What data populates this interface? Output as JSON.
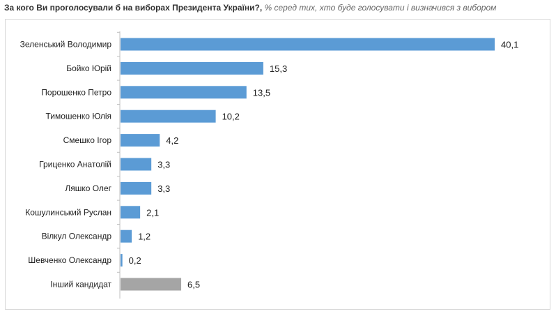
{
  "header": {
    "title": "За кого Ви проголосували б на виборах Президента України?,",
    "note": " % серед тих, хто буде голосувати і визначився з вибором"
  },
  "chart_data": {
    "type": "bar",
    "orientation": "horizontal",
    "categories": [
      "Зеленський Володимир",
      "Бойко Юрій",
      "Порошенко Петро",
      "Тимошенко Юлія",
      "Смешко Ігор",
      "Гриценко Анатолій",
      "Ляшко Олег",
      "Кошулинський Руслан",
      "Вілкул Олександр",
      "Шевченко Олександр",
      "Інший кандидат"
    ],
    "values": [
      40.1,
      15.3,
      13.5,
      10.2,
      4.2,
      3.3,
      3.3,
      2.1,
      1.2,
      0.2,
      6.5
    ],
    "value_labels": [
      "40,1",
      "15,3",
      "13,5",
      "10,2",
      "4,2",
      "3,3",
      "3,3",
      "2,1",
      "1,2",
      "0,2",
      "6,5"
    ],
    "bar_colors": [
      "#5b9bd5",
      "#5b9bd5",
      "#5b9bd5",
      "#5b9bd5",
      "#5b9bd5",
      "#5b9bd5",
      "#5b9bd5",
      "#5b9bd5",
      "#5b9bd5",
      "#5b9bd5",
      "#a5a5a5"
    ],
    "xlim": [
      0,
      40.1
    ],
    "grid": false,
    "legend": "none"
  }
}
